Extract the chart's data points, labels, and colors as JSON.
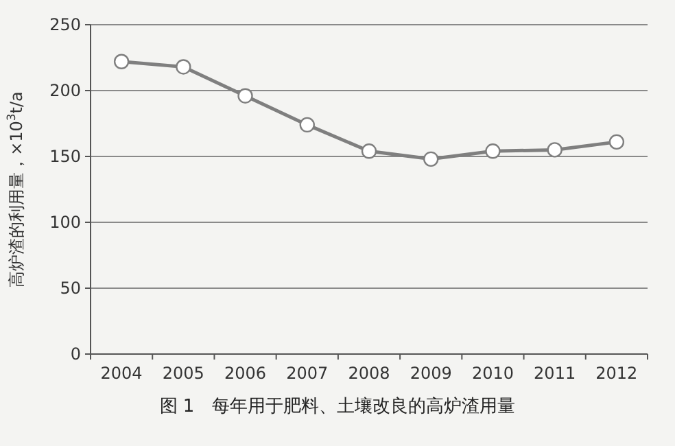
{
  "chart_data": {
    "type": "line",
    "title": "图 1　每年用于肥料、土壤改良的高炉渣用量",
    "ylabel": "高炉渣的利用量，×10$^{3}$t/a",
    "categories": [
      "2004",
      "2005",
      "2006",
      "2007",
      "2008",
      "2009",
      "2010",
      "2011",
      "2012"
    ],
    "series": [
      {
        "color": "#7f7f7f",
        "values": [
          222,
          218,
          196,
          174,
          154,
          148,
          154,
          155,
          161
        ]
      }
    ],
    "ylim": [
      0,
      250
    ],
    "yticks": [
      0,
      50,
      100,
      150,
      200,
      250
    ],
    "grid": "y",
    "marker": "circle",
    "line_style": "solid"
  }
}
